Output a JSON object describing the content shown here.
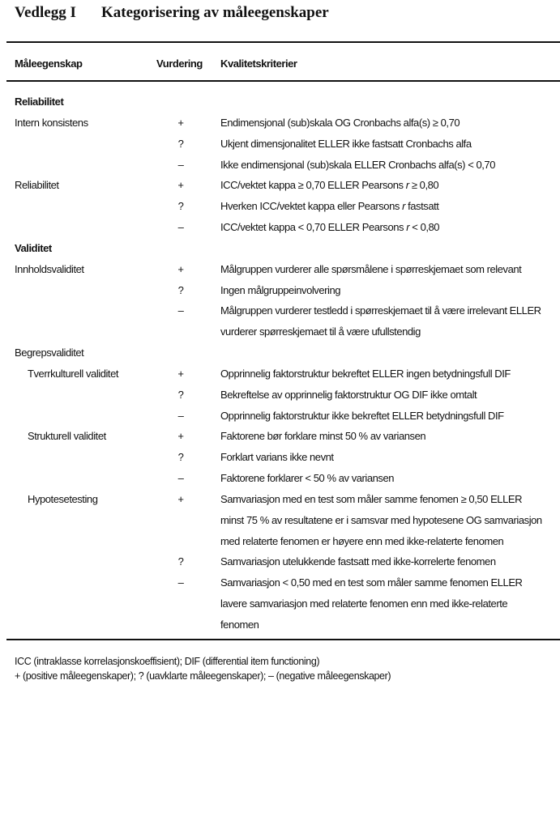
{
  "title": {
    "label": "Vedlegg I",
    "text": "Kategorisering av måleegenskaper"
  },
  "table": {
    "headers": [
      "Måleegenskap",
      "Vurdering",
      "Kvalitetskriterier"
    ],
    "rows": [
      {
        "section": "Reliabilitet"
      },
      {
        "property": "Intern konsistens",
        "rating": "+",
        "lines": [
          [
            {
              "t": "Endimensjonal (sub)skala OG Cronbachs alfa(s) ≥ 0,70"
            }
          ]
        ]
      },
      {
        "rating": "?",
        "lines": [
          [
            {
              "t": "Ukjent dimensjonalitet ELLER ikke fastsatt Cronbachs alfa"
            }
          ]
        ]
      },
      {
        "rating": "–",
        "lines": [
          [
            {
              "t": "Ikke endimensjonal (sub)skala ELLER Cronbachs alfa(s) < 0,70"
            }
          ]
        ]
      },
      {
        "property": "Reliabilitet",
        "rating": "+",
        "lines": [
          [
            {
              "t": "ICC/vektet kappa ≥ 0,70 ELLER Pearsons "
            },
            {
              "t": "r",
              "i": true
            },
            {
              "t": " ≥ 0,80"
            }
          ]
        ]
      },
      {
        "rating": "?",
        "lines": [
          [
            {
              "t": "Hverken ICC/vektet kappa eller Pearsons "
            },
            {
              "t": "r",
              "i": true
            },
            {
              "t": " fastsatt"
            }
          ]
        ]
      },
      {
        "rating": "–",
        "lines": [
          [
            {
              "t": "ICC/vektet kappa < 0,70 ELLER Pearsons "
            },
            {
              "t": "r",
              "i": true
            },
            {
              "t": " < 0,80"
            }
          ]
        ]
      },
      {
        "section": "Validitet"
      },
      {
        "property": "Innholdsvaliditet",
        "rating": "+",
        "lines": [
          [
            {
              "t": "Målgruppen vurderer alle spørsmålene i spørreskjemaet som relevant"
            }
          ]
        ]
      },
      {
        "rating": "?",
        "lines": [
          [
            {
              "t": "Ingen målgruppeinvolvering"
            }
          ]
        ]
      },
      {
        "rating": "–",
        "lines": [
          [
            {
              "t": "Målgruppen vurderer testledd i spørreskjemaet til å være irrelevant ELLER"
            }
          ],
          [
            {
              "t": "vurderer spørreskjemaet til å være ufullstendig"
            }
          ]
        ]
      },
      {
        "property": "Begrepsvaliditet"
      },
      {
        "property": "Tverrkulturell validitet",
        "indent": true,
        "rating": "+",
        "lines": [
          [
            {
              "t": "Opprinnelig faktorstruktur bekreftet ELLER ingen betydningsfull DIF"
            }
          ]
        ]
      },
      {
        "rating": "?",
        "lines": [
          [
            {
              "t": "Bekreftelse av opprinnelig faktorstruktur OG DIF ikke omtalt"
            }
          ]
        ]
      },
      {
        "rating": "–",
        "lines": [
          [
            {
              "t": "Opprinnelig faktorstruktur ikke bekreftet ELLER betydningsfull DIF"
            }
          ]
        ]
      },
      {
        "property": "Strukturell validitet",
        "indent": true,
        "rating": "+",
        "lines": [
          [
            {
              "t": "Faktorene bør forklare minst 50 % av variansen"
            }
          ]
        ]
      },
      {
        "rating": "?",
        "lines": [
          [
            {
              "t": "Forklart varians ikke nevnt"
            }
          ]
        ]
      },
      {
        "rating": "–",
        "lines": [
          [
            {
              "t": "Faktorene forklarer < 50 % av variansen"
            }
          ]
        ]
      },
      {
        "property": "Hypotesetesting",
        "indent": true,
        "rating": "+",
        "lines": [
          [
            {
              "t": "Samvariasjon med en test som måler samme fenomen ≥ 0,50 ELLER"
            }
          ],
          [
            {
              "t": "minst 75 % av resultatene er i samsvar med hypotesene OG samvariasjon"
            }
          ],
          [
            {
              "t": "med relaterte fenomen er høyere enn med ikke-relaterte fenomen"
            }
          ]
        ]
      },
      {
        "rating": "?",
        "lines": [
          [
            {
              "t": "Samvariasjon utelukkende fastsatt med ikke-korrelerte fenomen"
            }
          ]
        ]
      },
      {
        "rating": "–",
        "lines": [
          [
            {
              "t": "Samvariasjon < 0,50 med en test som måler samme fenomen ELLER"
            }
          ],
          [
            {
              "t": "lavere samvariasjon med relaterte fenomen enn med ikke-relaterte"
            }
          ],
          [
            {
              "t": "fenomen"
            }
          ]
        ]
      }
    ]
  },
  "footnotes": [
    "ICC (intraklasse korrelasjonskoeffisient); DIF (differential item functioning)",
    "+ (positive måleegenskaper); ? (uavklarte måleegenskaper); – (negative måleegenskaper)"
  ]
}
